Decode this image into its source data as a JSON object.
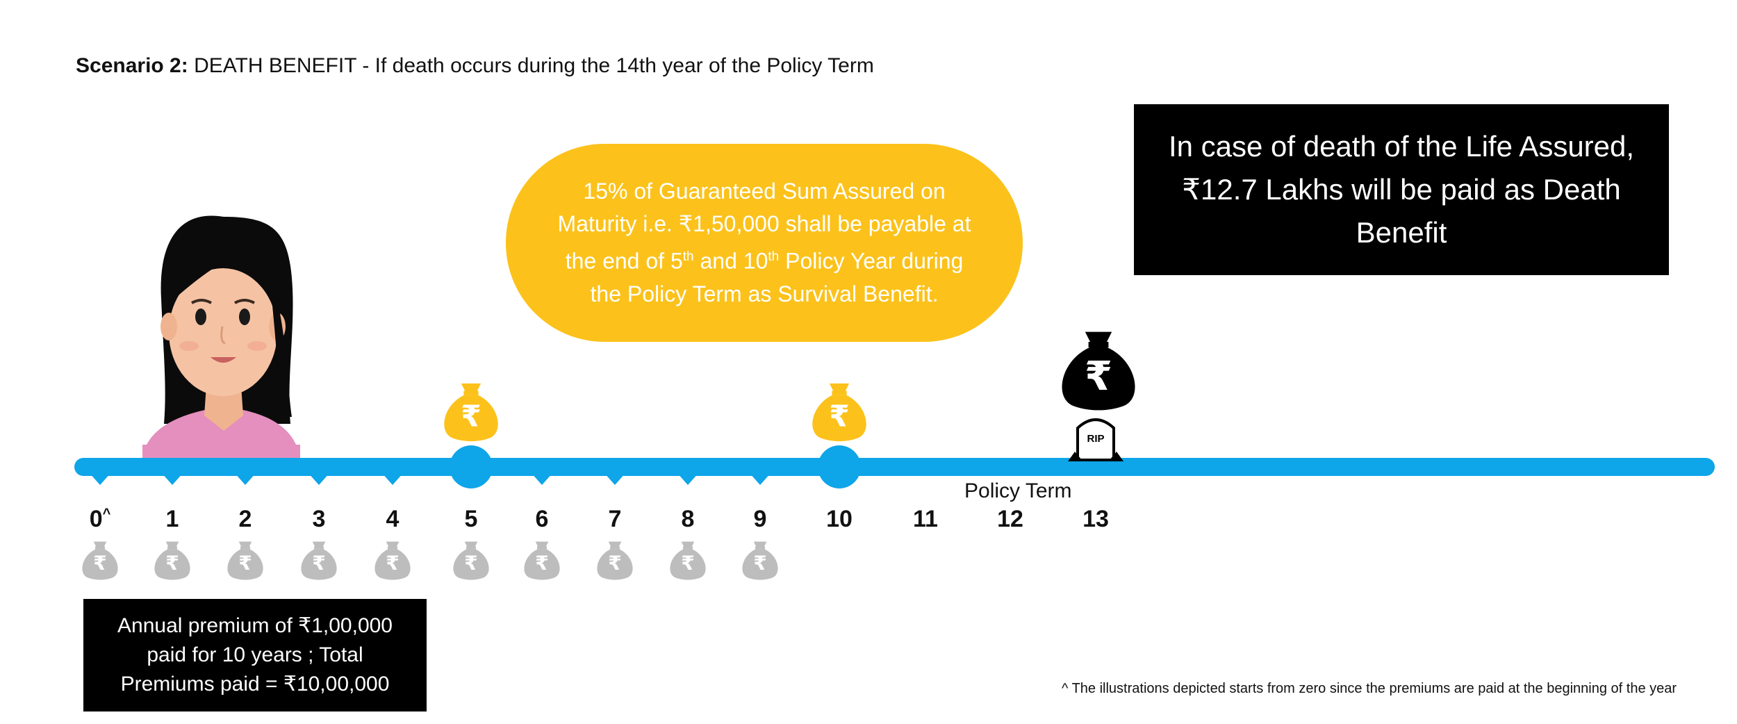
{
  "scenario": {
    "label": "Scenario 2:",
    "title": "DEATH BENEFIT - If death occurs during the 14th year of the Policy Term"
  },
  "death_benefit_box": "In case of death of the Life Assured, ₹12.7 Lakhs will be paid as Death Benefit",
  "survival_bubble": {
    "line1": "15% of Guaranteed Sum Assured on",
    "line2": "Maturity i.e. ₹1,50,000 shall be payable at",
    "line3_a": "the end of 5",
    "line3_sup1": "th",
    "line3_b": " and 10",
    "line3_sup2": "th",
    "line3_c": "  Policy Year during",
    "line4": "the Policy Term as Survival Benefit."
  },
  "premium_box": "Annual premium of ₹1,00,000 paid for 10 years ; Total Premiums paid = ₹10,00,000",
  "timeline": {
    "label": "Policy Term",
    "ticks": [
      "0",
      "1",
      "2",
      "3",
      "4",
      "5",
      "6",
      "7",
      "8",
      "9",
      "10",
      "11",
      "12",
      "13"
    ],
    "zero_mark": "^",
    "premium_years": [
      "0",
      "1",
      "2",
      "3",
      "4",
      "5",
      "6",
      "7",
      "8",
      "9"
    ],
    "survival_benefit_years": [
      "5",
      "10"
    ],
    "death_year": "13",
    "rip_text": "RIP",
    "currency_symbol": "₹"
  },
  "footnote": "^ The illustrations depicted starts from zero since the premiums are paid at the beginning of the year",
  "colors": {
    "timeline": "#0ea5e9",
    "bubble": "#fcc21b",
    "premium_bag": "#bdbdbd",
    "box": "#000000",
    "person_shirt": "#e48fbe",
    "person_skin": "#f5c3a4",
    "hair": "#0b0b0b"
  },
  "icons": [
    "person-avatar",
    "money-bag-icon",
    "tombstone-icon",
    "premium-bag-icon"
  ]
}
